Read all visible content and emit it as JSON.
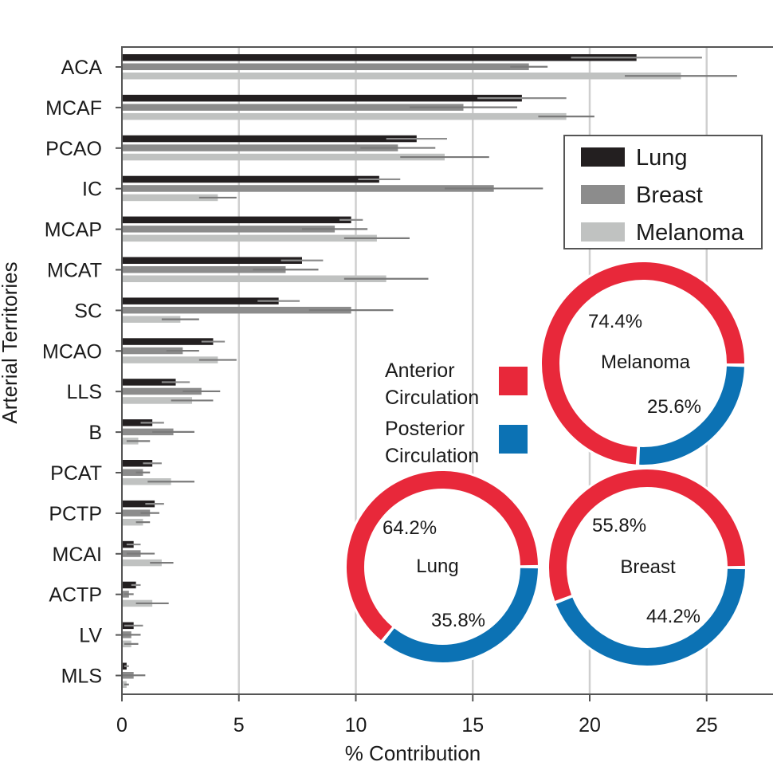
{
  "chart_data": [
    {
      "type": "bar",
      "orientation": "horizontal",
      "title": "",
      "xlabel": "% Contribution",
      "ylabel": "Arterial Territories",
      "xlim": [
        0,
        28
      ],
      "xticks": [
        0,
        5,
        10,
        15,
        20,
        25
      ],
      "xtick_labels": [
        "0",
        "5",
        "10",
        "15",
        "20",
        "25"
      ],
      "grid": "vertical",
      "categories": [
        "ACA",
        "MCAF",
        "PCAO",
        "IC",
        "MCAP",
        "MCAT",
        "SC",
        "MCAO",
        "LLS",
        "B",
        "PCAT",
        "PCTP",
        "MCAI",
        "ACTP",
        "LV",
        "MLS"
      ],
      "series": [
        {
          "name": "Lung",
          "color": "#231f20",
          "values": [
            22.0,
            17.1,
            12.6,
            11.0,
            9.8,
            7.7,
            6.7,
            3.9,
            2.3,
            1.3,
            1.3,
            1.4,
            0.5,
            0.6,
            0.5,
            0.2
          ],
          "errors": [
            2.8,
            1.9,
            1.3,
            0.9,
            0.5,
            0.9,
            0.9,
            0.5,
            0.6,
            0.5,
            0.4,
            0.4,
            0.3,
            0.2,
            0.4,
            0.1
          ]
        },
        {
          "name": "Breast",
          "color": "#8c8c8c",
          "values": [
            17.4,
            14.6,
            11.8,
            15.9,
            9.1,
            7.0,
            9.8,
            2.6,
            3.4,
            2.2,
            0.9,
            1.2,
            0.8,
            0.3,
            0.4,
            0.5
          ],
          "errors": [
            0.8,
            2.3,
            1.6,
            2.1,
            1.4,
            1.4,
            1.8,
            0.7,
            0.8,
            0.9,
            0.3,
            0.4,
            0.6,
            0.2,
            0.4,
            0.5
          ]
        },
        {
          "name": "Melanoma",
          "color": "#c0c2c1",
          "values": [
            23.9,
            19.0,
            13.8,
            4.1,
            10.9,
            11.3,
            2.5,
            4.1,
            3.0,
            0.7,
            2.1,
            0.9,
            1.7,
            1.3,
            0.4,
            0.2
          ],
          "errors": [
            2.4,
            1.2,
            1.9,
            0.8,
            1.4,
            1.8,
            0.8,
            0.8,
            0.9,
            0.5,
            1.0,
            0.3,
            0.5,
            0.7,
            0.3,
            0.1
          ]
        }
      ],
      "legend": {
        "position": "top-right",
        "entries": [
          "Lung",
          "Breast",
          "Melanoma"
        ]
      }
    },
    {
      "type": "pie",
      "style": "donut",
      "title": "Melanoma",
      "categories": [
        "Anterior Circulation",
        "Posterior Circulation"
      ],
      "values": [
        74.4,
        25.6
      ],
      "labels": [
        "74.4%",
        "25.6%"
      ],
      "colors": [
        "#e8283a",
        "#0c72b4"
      ]
    },
    {
      "type": "pie",
      "style": "donut",
      "title": "Lung",
      "categories": [
        "Anterior Circulation",
        "Posterior Circulation"
      ],
      "values": [
        64.2,
        35.8
      ],
      "labels": [
        "64.2%",
        "35.8%"
      ],
      "colors": [
        "#e8283a",
        "#0c72b4"
      ]
    },
    {
      "type": "pie",
      "style": "donut",
      "title": "Breast",
      "categories": [
        "Anterior Circulation",
        "Posterior Circulation"
      ],
      "values": [
        55.8,
        44.2
      ],
      "labels": [
        "55.8%",
        "44.2%"
      ],
      "colors": [
        "#e8283a",
        "#0c72b4"
      ]
    }
  ],
  "circulation_key": [
    {
      "line1": "Anterior",
      "line2": "Circulation",
      "color": "#e8283a"
    },
    {
      "line1": "Posterior",
      "line2": "Circulation",
      "color": "#0c72b4"
    }
  ],
  "axis_color": "#555555",
  "grid_color": "#cfcfcf"
}
